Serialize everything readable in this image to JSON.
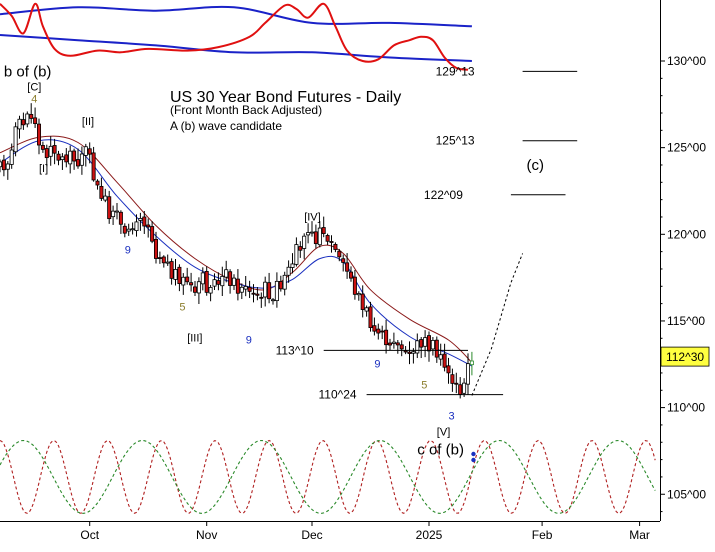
{
  "chart_data": {
    "type": "candlestick",
    "title": "US 30 Year Bond Futures - Daily",
    "subtitle": "(Front Month Back Adjusted)",
    "note": "A (b) wave candidate",
    "yticks": [
      {
        "v": 130,
        "label": "130^00"
      },
      {
        "v": 125,
        "label": "125^00"
      },
      {
        "v": 120,
        "label": "120^00"
      },
      {
        "v": 115,
        "label": "115^00"
      },
      {
        "v": 110,
        "label": "110^00"
      },
      {
        "v": 105,
        "label": "105^00"
      }
    ],
    "ylim": [
      102,
      133.6
    ],
    "xlim": [
      0,
      166
    ],
    "xticks": [
      {
        "x": 23,
        "label": "Oct"
      },
      {
        "x": 53,
        "label": "Nov"
      },
      {
        "x": 80,
        "label": "Dec"
      },
      {
        "x": 110,
        "label": "2025"
      },
      {
        "x": 139,
        "label": "Feb"
      },
      {
        "x": 164,
        "label": "Mar"
      }
    ],
    "last_price": {
      "v": 112.94,
      "label": "112^30"
    },
    "price_path": [
      [
        0,
        123.8
      ],
      [
        2,
        124.3
      ],
      [
        4,
        126
      ],
      [
        6,
        126.6
      ],
      [
        8,
        127.1
      ],
      [
        9,
        126.3
      ],
      [
        10,
        125.2
      ],
      [
        12,
        124.8
      ],
      [
        14,
        124.6
      ],
      [
        16,
        124.3
      ],
      [
        18,
        124.4
      ],
      [
        20,
        124.2
      ],
      [
        22,
        124.8
      ],
      [
        23,
        124.2
      ],
      [
        24,
        123.5
      ],
      [
        26,
        122.3
      ],
      [
        28,
        121.3
      ],
      [
        30,
        121
      ],
      [
        32,
        120.5
      ],
      [
        34,
        120
      ],
      [
        36,
        120.8
      ],
      [
        37,
        120.6
      ],
      [
        38,
        120.1
      ],
      [
        40,
        118.6
      ],
      [
        42,
        118.2
      ],
      [
        44,
        117.8
      ],
      [
        46,
        117.3
      ],
      [
        48,
        117.4
      ],
      [
        50,
        117
      ],
      [
        52,
        117.6
      ],
      [
        54,
        116.5
      ],
      [
        56,
        117.4
      ],
      [
        58,
        117.6
      ],
      [
        60,
        117.1
      ],
      [
        62,
        116.8
      ],
      [
        64,
        116.9
      ],
      [
        66,
        116.5
      ],
      [
        68,
        116.9
      ],
      [
        70,
        116.5
      ],
      [
        72,
        117.3
      ],
      [
        74,
        118.4
      ],
      [
        76,
        119
      ],
      [
        78,
        119.6
      ],
      [
        80,
        119.8
      ],
      [
        82,
        120
      ],
      [
        84,
        119.8
      ],
      [
        86,
        119.3
      ],
      [
        88,
        118.5
      ],
      [
        90,
        117.3
      ],
      [
        92,
        116.3
      ],
      [
        94,
        115.6
      ],
      [
        96,
        114.5
      ],
      [
        98,
        114.2
      ],
      [
        100,
        113.9
      ],
      [
        102,
        113.4
      ],
      [
        104,
        113.3
      ],
      [
        106,
        113.5
      ],
      [
        108,
        113.9
      ],
      [
        110,
        113.6
      ],
      [
        112,
        113.3
      ],
      [
        113,
        113.1
      ],
      [
        114,
        112.2
      ],
      [
        116,
        111.6
      ],
      [
        117,
        111.2
      ],
      [
        118,
        111.1
      ],
      [
        119,
        111.6
      ],
      [
        120,
        112.2
      ],
      [
        121,
        112.9
      ],
      [
        121.4,
        112.94
      ]
    ],
    "ma_red": [
      [
        0,
        124.7
      ],
      [
        10,
        125.6
      ],
      [
        20,
        125.3
      ],
      [
        30,
        123
      ],
      [
        40,
        120.5
      ],
      [
        50,
        118.6
      ],
      [
        60,
        117.3
      ],
      [
        68,
        116.8
      ],
      [
        75,
        117.8
      ],
      [
        82,
        119.3
      ],
      [
        88,
        118.9
      ],
      [
        95,
        116.8
      ],
      [
        105,
        115.1
      ],
      [
        115,
        113.9
      ],
      [
        121,
        112.6
      ]
    ],
    "ma_blue": [
      [
        0,
        124.1
      ],
      [
        10,
        125.4
      ],
      [
        20,
        124.9
      ],
      [
        30,
        122.2
      ],
      [
        40,
        119.9
      ],
      [
        50,
        118.1
      ],
      [
        60,
        117.2
      ],
      [
        68,
        116.9
      ],
      [
        75,
        117.4
      ],
      [
        82,
        118.6
      ],
      [
        88,
        118.4
      ],
      [
        95,
        116
      ],
      [
        105,
        114.1
      ],
      [
        115,
        113.1
      ],
      [
        121,
        112.4
      ]
    ],
    "indicator_red": [
      [
        0,
        133.3
      ],
      [
        3,
        132.6
      ],
      [
        6,
        131.6
      ],
      [
        9,
        133.3
      ],
      [
        11,
        132
      ],
      [
        14,
        130.7
      ],
      [
        18,
        130.3
      ],
      [
        25,
        130.6
      ],
      [
        31,
        130.5
      ],
      [
        38,
        130.7
      ],
      [
        48,
        130.6
      ],
      [
        56,
        130.8
      ],
      [
        64,
        131.4
      ],
      [
        68,
        132.2
      ],
      [
        73,
        133.2
      ],
      [
        76,
        133
      ],
      [
        79,
        132.5
      ],
      [
        83,
        133.3
      ],
      [
        86,
        132
      ],
      [
        89,
        130.6
      ],
      [
        93,
        130
      ],
      [
        97,
        130.1
      ],
      [
        101,
        130.9
      ],
      [
        105,
        131.2
      ],
      [
        108,
        131.4
      ],
      [
        111,
        131.2
      ],
      [
        114,
        130.2
      ],
      [
        117,
        129.6
      ],
      [
        120,
        129.5
      ]
    ],
    "indicator_blue_top": [
      [
        0,
        132.7
      ],
      [
        20,
        133.1
      ],
      [
        40,
        132.9
      ],
      [
        60,
        133.1
      ],
      [
        80,
        132.2
      ],
      [
        100,
        132.2
      ],
      [
        121,
        132
      ]
    ],
    "indicator_blue_low": [
      [
        0,
        131.5
      ],
      [
        20,
        131.2
      ],
      [
        40,
        130.9
      ],
      [
        60,
        130.5
      ],
      [
        80,
        130.5
      ],
      [
        100,
        130.2
      ],
      [
        121,
        130
      ]
    ],
    "projection": [
      [
        121,
        110.7
      ],
      [
        126,
        113.4
      ],
      [
        131,
        117.2
      ],
      [
        134,
        118.9
      ]
    ],
    "levels": [
      {
        "label": "129^13",
        "v": 129.4,
        "x1": 134,
        "x2": 148
      },
      {
        "label": "125^13",
        "v": 125.4,
        "x1": 134,
        "x2": 148
      },
      {
        "label": "122^09",
        "v": 122.28,
        "x1": 131,
        "x2": 145
      },
      {
        "label": "113^10",
        "v": 113.3,
        "x1": 83,
        "x2": 120
      },
      {
        "label": "110^24",
        "v": 110.75,
        "x1": 94,
        "x2": 129
      }
    ],
    "wave_labels": [
      {
        "text": "b of (b)",
        "x": 1,
        "v": 129.1,
        "color": "#000000",
        "size": 15
      },
      {
        "text": "[C]",
        "x": 7,
        "v": 128.3,
        "color": "#000000",
        "size": 11
      },
      {
        "text": "4",
        "x": 8,
        "v": 127.6,
        "color": "#8b7d2c",
        "size": 11
      },
      {
        "text": "[I]",
        "x": 10,
        "v": 123.6,
        "color": "#000000",
        "size": 11
      },
      {
        "text": "[II]",
        "x": 21,
        "v": 126.3,
        "color": "#000000",
        "size": 11
      },
      {
        "text": "9",
        "x": 32,
        "v": 118.9,
        "color": "#1a2fbf",
        "size": 11
      },
      {
        "text": "5",
        "x": 46,
        "v": 115.6,
        "color": "#8b7d2c",
        "size": 11
      },
      {
        "text": "[III]",
        "x": 48,
        "v": 113.8,
        "color": "#000000",
        "size": 11
      },
      {
        "text": "9",
        "x": 63,
        "v": 113.7,
        "color": "#1a2fbf",
        "size": 11
      },
      {
        "text": "[IV]",
        "x": 78,
        "v": 120.8,
        "color": "#000000",
        "size": 11
      },
      {
        "text": "9",
        "x": 96,
        "v": 112.3,
        "color": "#1a2fbf",
        "size": 11
      },
      {
        "text": "5",
        "x": 108,
        "v": 111.1,
        "color": "#8b7d2c",
        "size": 11
      },
      {
        "text": "3",
        "x": 115,
        "v": 109.3,
        "color": "#1a2fbf",
        "size": 11
      },
      {
        "text": "[V]",
        "x": 112,
        "v": 108.4,
        "color": "#000000",
        "size": 11
      },
      {
        "text": "c of (b)",
        "x": 107,
        "v": 107.3,
        "color": "#000000",
        "size": 15
      },
      {
        "text": "(c)",
        "x": 135,
        "v": 123.7,
        "color": "#000000",
        "size": 15
      }
    ],
    "cycles": {
      "red": {
        "color": "#b02020",
        "period": 13.8,
        "phase": 0,
        "center": 106,
        "amp": 2.1
      },
      "green": {
        "color": "#2b8a2b",
        "period": 30.5,
        "phase": 6,
        "center": 106,
        "amp": 2.1
      }
    }
  }
}
